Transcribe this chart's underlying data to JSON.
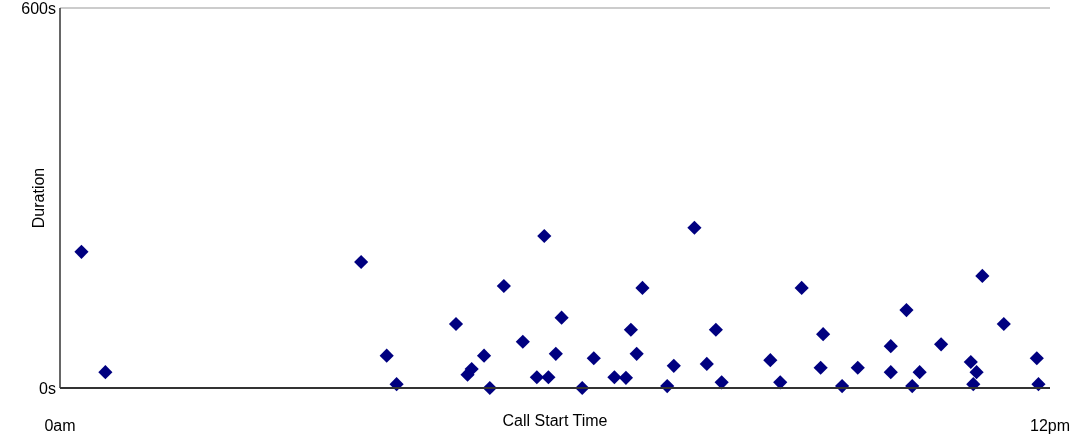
{
  "chart_data": {
    "type": "scatter",
    "xlabel": "Call Start Time",
    "ylabel": "Duration",
    "xlim": [
      0,
      12
    ],
    "ylim": [
      0,
      600
    ],
    "xticks": [
      {
        "value": 0,
        "label": "0am"
      },
      {
        "value": 12,
        "label": "12pm"
      }
    ],
    "yticks": [
      {
        "value": 0,
        "label": "0s"
      },
      {
        "value": 600,
        "label": "600s"
      }
    ],
    "marker": "diamond",
    "grid": false,
    "series": [
      {
        "color": "#000080",
        "x": [
          0.26,
          0.55,
          3.65,
          3.96,
          4.08,
          4.8,
          4.94,
          4.99,
          5.14,
          5.21,
          5.38,
          5.61,
          5.78,
          5.87,
          5.92,
          6.01,
          6.08,
          6.33,
          6.47,
          6.72,
          6.86,
          6.92,
          6.99,
          7.06,
          7.36,
          7.44,
          7.69,
          7.84,
          7.95,
          8.02,
          8.61,
          8.73,
          8.99,
          9.25,
          9.22,
          9.48,
          9.67,
          10.07,
          10.07,
          10.26,
          10.33,
          10.42,
          10.68,
          11.04,
          11.11,
          11.07,
          11.18,
          11.44,
          11.84,
          11.86
        ],
        "values": [
          215,
          25,
          199,
          51,
          6,
          101,
          21,
          30,
          51,
          0,
          161,
          73,
          17,
          240,
          17,
          54,
          111,
          0,
          47,
          17,
          16,
          92,
          54,
          158,
          3,
          35,
          253,
          38,
          92,
          9,
          44,
          9,
          158,
          85,
          32,
          3,
          32,
          66,
          25,
          123,
          3,
          25,
          69,
          41,
          25,
          6,
          177,
          101,
          47,
          6
        ]
      }
    ]
  }
}
